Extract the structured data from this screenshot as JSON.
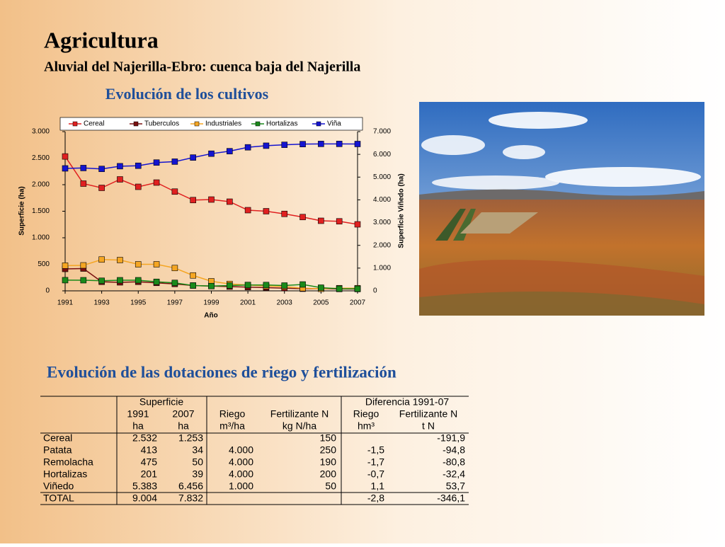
{
  "title": "Agricultura",
  "subtitle": "Aluvial del Najerilla-Ebro: cuenca baja del Najerilla",
  "chart_heading": "Evolución de los cultivos",
  "table_heading": "Evolución de las dotaciones de riego y fertilización",
  "chart_data": {
    "type": "line",
    "x_label": "Año",
    "y_label": "Superficie (ha)",
    "y2_label": "Superficie Viñedo (ha)",
    "legend": "top",
    "x": [
      1991,
      1992,
      1993,
      1994,
      1995,
      1996,
      1997,
      1998,
      1999,
      2000,
      2001,
      2002,
      2003,
      2004,
      2005,
      2006,
      2007
    ],
    "xlim": [
      1991,
      2007
    ],
    "xticks": [
      1991,
      1993,
      1995,
      1997,
      1999,
      2001,
      2003,
      2005,
      2007
    ],
    "ylim": [
      0,
      3000
    ],
    "yticks": [
      0,
      500,
      {
        "value": 1000,
        "label": "1.000"
      },
      {
        "value": 1500,
        "label": "1.500"
      },
      {
        "value": 2000,
        "label": "2.000"
      },
      {
        "value": 2500,
        "label": "2.500"
      },
      {
        "value": 3000,
        "label": "3.000"
      }
    ],
    "y2lim": [
      0,
      7000
    ],
    "y2ticks": [
      0,
      {
        "value": 1000,
        "label": "1.000"
      },
      {
        "value": 2000,
        "label": "2.000"
      },
      {
        "value": 3000,
        "label": "3.000"
      },
      {
        "value": 4000,
        "label": "4.000"
      },
      {
        "value": 5000,
        "label": "5.000"
      },
      {
        "value": 6000,
        "label": "6.000"
      },
      {
        "value": 7000,
        "label": "7.000"
      }
    ],
    "series": [
      {
        "name": "Cereal",
        "color": "#e02020",
        "values": [
          2532,
          2020,
          1940,
          2100,
          1960,
          2040,
          1870,
          1710,
          1720,
          1680,
          1520,
          1500,
          1450,
          1390,
          1320,
          1310,
          1253
        ]
      },
      {
        "name": "Tuberculos",
        "color": "#7a1010",
        "values": [
          413,
          420,
          170,
          160,
          170,
          150,
          130,
          100,
          90,
          80,
          70,
          60,
          50,
          40,
          40,
          35,
          34
        ]
      },
      {
        "name": "Industriales",
        "color": "#f5a623",
        "values": [
          475,
          480,
          590,
          580,
          500,
          500,
          430,
          290,
          180,
          130,
          110,
          90,
          80,
          50,
          40,
          50,
          50
        ]
      },
      {
        "name": "Hortalizas",
        "color": "#1a8a1a",
        "values": [
          201,
          200,
          190,
          200,
          200,
          170,
          150,
          100,
          90,
          100,
          110,
          110,
          100,
          120,
          60,
          40,
          39
        ]
      },
      {
        "name": "Viña",
        "color": "#1414d0",
        "axis": "y2",
        "values": [
          5383,
          5400,
          5360,
          5480,
          5500,
          5640,
          5680,
          5860,
          6030,
          6140,
          6310,
          6380,
          6420,
          6450,
          6460,
          6460,
          6456
        ]
      }
    ]
  },
  "table": {
    "group_superficie": "Superficie",
    "group_diferencia": "Diferencia 1991-07",
    "columns": [
      [
        "1991",
        "ha"
      ],
      [
        "2007",
        "ha"
      ],
      [
        "Riego",
        "m³/ha"
      ],
      [
        "Fertilizante N",
        "kg N/ha"
      ],
      [
        "Riego",
        "hm³"
      ],
      [
        "Fertilizante N",
        "t N"
      ]
    ],
    "rows": [
      [
        "Cereal",
        "2.532",
        "1.253",
        null,
        "150",
        null,
        "-191,9"
      ],
      [
        "Patata",
        "413",
        "34",
        "4.000",
        "250",
        "-1,5",
        "-94,8"
      ],
      [
        "Remolacha",
        "475",
        "50",
        "4.000",
        "190",
        "-1,7",
        "-80,8"
      ],
      [
        "Hortalizas",
        "201",
        "39",
        "4.000",
        "200",
        "-0,7",
        "-32,4"
      ],
      [
        "Viñedo",
        "5.383",
        "6.456",
        "1.000",
        "50",
        "1,1",
        "53,7"
      ],
      [
        "TOTAL",
        "9.004",
        "7.832",
        null,
        null,
        "-2,8",
        "-346,1"
      ]
    ]
  }
}
